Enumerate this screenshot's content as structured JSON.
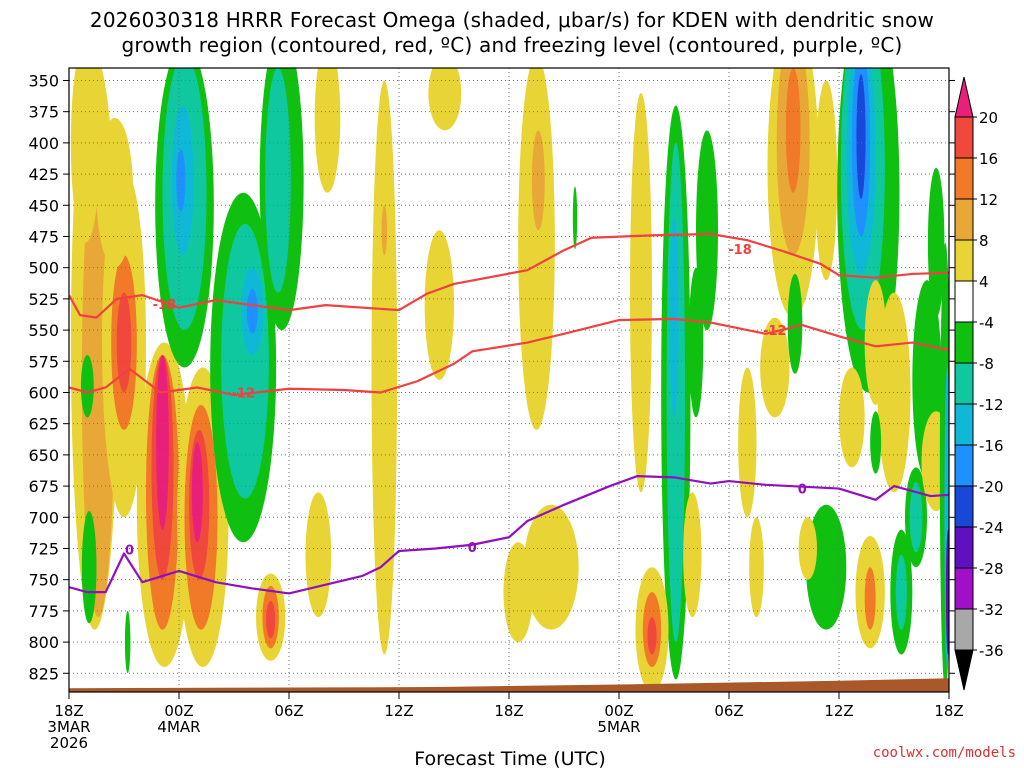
{
  "chart_data": {
    "type": "heatmap",
    "title_line1": "2026030318 HRRR Forecast Omega (shaded, μbar/s) for KDEN with dendritic snow",
    "title_line2": "growth region (contoured, red, ºC) and freezing level (contoured, purple, ºC)",
    "xlabel": "Forecast Time (UTC)",
    "credit": "coolwx.com/models",
    "y_axis": {
      "unit": "hPa",
      "ticks": [
        "350",
        "375",
        "400",
        "425",
        "450",
        "475",
        "500",
        "525",
        "550",
        "575",
        "600",
        "625",
        "650",
        "675",
        "700",
        "725",
        "750",
        "775",
        "800",
        "825"
      ],
      "range": [
        340,
        840
      ]
    },
    "x_axis": {
      "unit": "hours from 18Z 3MAR",
      "range": [
        0,
        48
      ],
      "ticks": [
        {
          "hour": 0,
          "lines": [
            "18Z",
            "3MAR",
            "2026"
          ]
        },
        {
          "hour": 6,
          "lines": [
            "00Z",
            "4MAR"
          ]
        },
        {
          "hour": 12,
          "lines": [
            "06Z"
          ]
        },
        {
          "hour": 18,
          "lines": [
            "12Z"
          ]
        },
        {
          "hour": 24,
          "lines": [
            "18Z"
          ]
        },
        {
          "hour": 30,
          "lines": [
            "00Z",
            "5MAR"
          ]
        },
        {
          "hour": 36,
          "lines": [
            "06Z"
          ]
        },
        {
          "hour": 42,
          "lines": [
            "12Z"
          ]
        },
        {
          "hour": 48,
          "lines": [
            "18Z"
          ]
        }
      ]
    },
    "colorbar": {
      "labels": [
        "20",
        "16",
        "12",
        "8",
        "4",
        "-4",
        "-8",
        "-12",
        "-16",
        "-20",
        "-24",
        "-28",
        "-32",
        "-36"
      ],
      "bins": [
        {
          "range": [
            20,
            null
          ],
          "color": "#e8207a"
        },
        {
          "range": [
            16,
            20
          ],
          "color": "#f0483c"
        },
        {
          "range": [
            12,
            16
          ],
          "color": "#f07a28"
        },
        {
          "range": [
            8,
            12
          ],
          "color": "#e8a838"
        },
        {
          "range": [
            4,
            8
          ],
          "color": "#e8d434"
        },
        {
          "range": [
            -4,
            4
          ],
          "color": "#ffffff"
        },
        {
          "range": [
            -8,
            -4
          ],
          "color": "#10c010"
        },
        {
          "range": [
            -12,
            -8
          ],
          "color": "#10c8a0"
        },
        {
          "range": [
            -16,
            -12
          ],
          "color": "#10b8d8"
        },
        {
          "range": [
            -20,
            -16
          ],
          "color": "#1e90ff"
        },
        {
          "range": [
            -24,
            -20
          ],
          "color": "#1848d8"
        },
        {
          "range": [
            -28,
            -24
          ],
          "color": "#6010c0"
        },
        {
          "range": [
            -32,
            -28
          ],
          "color": "#a010c8"
        },
        {
          "range": [
            -36,
            -32
          ],
          "color": "#a8a8a8"
        },
        {
          "range": [
            null,
            -36
          ],
          "color": "#000000"
        }
      ]
    },
    "contours": [
      {
        "name": "-18C isotherm",
        "label": "-18",
        "color": "#f04040",
        "points": [
          [
            0,
            522
          ],
          [
            0.6,
            538
          ],
          [
            1.5,
            540
          ],
          [
            2.6,
            525
          ],
          [
            4,
            522
          ],
          [
            6,
            532
          ],
          [
            8,
            526
          ],
          [
            10,
            530
          ],
          [
            12,
            534
          ],
          [
            14,
            530
          ],
          [
            18,
            534
          ],
          [
            19.5,
            521
          ],
          [
            21,
            513
          ],
          [
            25,
            502
          ],
          [
            27,
            486
          ],
          [
            28.5,
            476
          ],
          [
            32,
            474
          ],
          [
            35,
            473
          ],
          [
            37,
            478
          ],
          [
            39,
            487
          ],
          [
            41,
            497
          ],
          [
            42,
            506
          ],
          [
            44,
            508
          ],
          [
            46,
            505
          ],
          [
            48,
            504
          ]
        ],
        "labels": [
          {
            "x": 5.2,
            "y": 529
          },
          {
            "x": 36.6,
            "y": 485
          }
        ]
      },
      {
        "name": "-12C isotherm",
        "label": "-12",
        "color": "#f04040",
        "points": [
          [
            0,
            596
          ],
          [
            1,
            600
          ],
          [
            2,
            596
          ],
          [
            3.3,
            581
          ],
          [
            5,
            600
          ],
          [
            7,
            596
          ],
          [
            9,
            602
          ],
          [
            12,
            597
          ],
          [
            15,
            598
          ],
          [
            17,
            600
          ],
          [
            19,
            591
          ],
          [
            21,
            577
          ],
          [
            22,
            567
          ],
          [
            25,
            560
          ],
          [
            27,
            553
          ],
          [
            30,
            542
          ],
          [
            33,
            541
          ],
          [
            35,
            544
          ],
          [
            37,
            550
          ],
          [
            38,
            553
          ],
          [
            40,
            546
          ],
          [
            42,
            555
          ],
          [
            44,
            563
          ],
          [
            46,
            560
          ],
          [
            48,
            566
          ]
        ],
        "labels": [
          {
            "x": 9.5,
            "y": 600
          },
          {
            "x": 38.5,
            "y": 550
          }
        ]
      },
      {
        "name": "freezing level 0C",
        "label": "0",
        "color": "#9010c0",
        "points": [
          [
            0,
            756
          ],
          [
            1,
            760
          ],
          [
            2,
            760
          ],
          [
            3,
            729
          ],
          [
            4,
            752
          ],
          [
            6,
            743
          ],
          [
            8,
            752
          ],
          [
            10,
            757
          ],
          [
            12,
            761
          ],
          [
            14,
            754
          ],
          [
            16,
            747
          ],
          [
            17,
            740
          ],
          [
            18,
            727
          ],
          [
            20,
            725
          ],
          [
            22,
            722
          ],
          [
            24,
            716
          ],
          [
            25,
            703
          ],
          [
            27,
            690
          ],
          [
            29.5,
            675
          ],
          [
            31,
            667
          ],
          [
            33,
            668
          ],
          [
            35,
            673
          ],
          [
            36,
            671
          ],
          [
            38,
            674
          ],
          [
            42,
            677
          ],
          [
            44,
            686
          ],
          [
            45,
            675
          ],
          [
            47,
            683
          ],
          [
            48,
            682
          ]
        ],
        "labels": [
          {
            "x": 3.3,
            "y": 726
          },
          {
            "x": 22,
            "y": 724
          },
          {
            "x": 40,
            "y": 677
          }
        ]
      }
    ],
    "terrain": {
      "color": "#a8582a",
      "surface": [
        [
          0,
          837
        ],
        [
          20,
          836
        ],
        [
          30,
          834
        ],
        [
          42,
          831
        ],
        [
          48,
          829
        ]
      ]
    }
  }
}
